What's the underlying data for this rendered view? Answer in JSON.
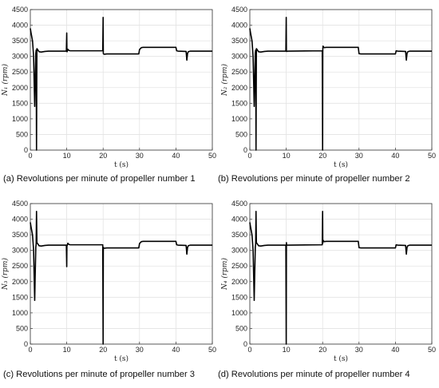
{
  "chart_data": [
    {
      "type": "line",
      "caption": "(a) Revolutions per minute of propeller number 1",
      "xlabel": "t (s)",
      "ylabel": "N₁ (rpm)",
      "xlim": [
        0,
        50
      ],
      "ylim": [
        0,
        4500
      ],
      "xticks": [
        "0",
        "10",
        "20",
        "30",
        "40",
        "50"
      ],
      "yticks": [
        "0",
        "500",
        "1000",
        "1500",
        "2000",
        "2500",
        "3000",
        "3500",
        "4000",
        "4500"
      ],
      "grid": true,
      "series": [
        {
          "x": [
            0,
            0.2,
            0.6,
            0.9,
            1.2,
            1.3,
            1.5,
            1.6,
            1.7,
            1.8,
            2.0,
            2.4,
            3.0,
            4.0,
            5.0,
            9.9,
            10.0,
            10.05,
            10.1,
            10.3,
            10.6,
            11.0,
            19.9,
            20.0,
            20.05,
            20.1,
            20.3,
            21,
            29.8,
            30.0,
            30.5,
            31,
            40,
            40.2,
            40.6,
            42.8,
            43.0,
            43.2,
            43.4,
            43.7,
            44,
            50
          ],
          "y": [
            3900,
            3750,
            3500,
            3000,
            1400,
            2000,
            3100,
            3200,
            0,
            3250,
            3220,
            3150,
            3140,
            3160,
            3170,
            3170,
            3750,
            3170,
            3150,
            3230,
            3190,
            3180,
            3180,
            4250,
            3100,
            3080,
            3070,
            3080,
            3080,
            3220,
            3280,
            3290,
            3290,
            3180,
            3170,
            3160,
            2880,
            3100,
            3150,
            3160,
            3170,
            3170
          ]
        }
      ]
    },
    {
      "type": "line",
      "caption": "(b) Revolutions per minute of propeller number 2",
      "xlabel": "t (s)",
      "ylabel": "N₂ (rpm)",
      "xlim": [
        0,
        50
      ],
      "ylim": [
        0,
        4500
      ],
      "xticks": [
        "0",
        "10",
        "20",
        "30",
        "40",
        "50"
      ],
      "yticks": [
        "0",
        "500",
        "1000",
        "1500",
        "2000",
        "2500",
        "3000",
        "3500",
        "4000",
        "4500"
      ],
      "grid": true,
      "series": [
        {
          "x": [
            0,
            0.2,
            0.6,
            0.9,
            1.2,
            1.3,
            1.5,
            1.6,
            1.7,
            1.8,
            2.0,
            2.4,
            3.0,
            4.0,
            5.0,
            9.9,
            10.0,
            10.05,
            10.1,
            10.5,
            19.9,
            20.0,
            20.05,
            20.1,
            20.4,
            21,
            29.8,
            30.0,
            30.5,
            31,
            40,
            40.2,
            40.6,
            42.8,
            43.0,
            43.2,
            43.4,
            43.7,
            44,
            50
          ],
          "y": [
            3900,
            3750,
            3500,
            3000,
            1400,
            2000,
            3100,
            3200,
            0,
            3250,
            3220,
            3150,
            3140,
            3160,
            3170,
            3170,
            4250,
            3170,
            3160,
            3170,
            3180,
            0,
            3230,
            3330,
            3280,
            3290,
            3290,
            3090,
            3080,
            3080,
            3080,
            3180,
            3170,
            3160,
            2880,
            3100,
            3150,
            3160,
            3170,
            3170
          ]
        }
      ]
    },
    {
      "type": "line",
      "caption": "(c) Revolutions per minute of propeller number 3",
      "xlabel": "t (s)",
      "ylabel": "N₃ (rpm)",
      "xlim": [
        0,
        50
      ],
      "ylim": [
        0,
        4500
      ],
      "xticks": [
        "0",
        "10",
        "20",
        "30",
        "40",
        "50"
      ],
      "yticks": [
        "0",
        "500",
        "1000",
        "1500",
        "2000",
        "2500",
        "3000",
        "3500",
        "4000",
        "4500"
      ],
      "grid": true,
      "series": [
        {
          "x": [
            0,
            0.2,
            0.6,
            0.9,
            1.2,
            1.3,
            1.5,
            1.6,
            1.7,
            1.8,
            2.0,
            2.4,
            3.0,
            4.0,
            5.0,
            9.9,
            10.0,
            10.05,
            10.1,
            10.3,
            10.6,
            11.0,
            19.9,
            20.0,
            20.05,
            20.1,
            20.3,
            21,
            29.8,
            30.0,
            30.5,
            31,
            40,
            40.2,
            40.6,
            42.8,
            43.0,
            43.2,
            43.4,
            43.7,
            44,
            50
          ],
          "y": [
            3900,
            3750,
            3500,
            3000,
            1400,
            2000,
            3100,
            3200,
            4250,
            3250,
            3220,
            3150,
            3140,
            3160,
            3170,
            3170,
            2480,
            3170,
            3150,
            3230,
            3190,
            3180,
            3180,
            0,
            3100,
            3080,
            3070,
            3080,
            3080,
            3220,
            3280,
            3290,
            3290,
            3180,
            3170,
            3160,
            2880,
            3100,
            3150,
            3160,
            3170,
            3170
          ]
        }
      ]
    },
    {
      "type": "line",
      "caption": "(d) Revolutions per minute of propeller number 4",
      "xlabel": "t (s)",
      "ylabel": "N₄ (rpm)",
      "xlim": [
        0,
        50
      ],
      "ylim": [
        0,
        4500
      ],
      "xticks": [
        "0",
        "10",
        "20",
        "30",
        "40",
        "50"
      ],
      "yticks": [
        "0",
        "500",
        "1000",
        "1500",
        "2000",
        "2500",
        "3000",
        "3500",
        "4000",
        "4500"
      ],
      "grid": true,
      "series": [
        {
          "x": [
            0,
            0.2,
            0.6,
            0.9,
            1.2,
            1.3,
            1.5,
            1.6,
            1.7,
            1.8,
            2.0,
            2.4,
            3.0,
            4.0,
            5.0,
            9.9,
            10.0,
            10.05,
            10.1,
            10.5,
            19.9,
            20.0,
            20.05,
            20.1,
            20.4,
            21,
            29.8,
            30.0,
            30.5,
            31,
            40,
            40.2,
            40.6,
            42.8,
            43.0,
            43.2,
            43.4,
            43.7,
            44,
            50
          ],
          "y": [
            3900,
            3750,
            3500,
            3000,
            1400,
            2000,
            3100,
            3200,
            4250,
            3250,
            3220,
            3150,
            3140,
            3160,
            3170,
            3170,
            0,
            3250,
            3170,
            3170,
            3180,
            4250,
            3230,
            3330,
            3280,
            3290,
            3290,
            3090,
            3080,
            3080,
            3080,
            3180,
            3170,
            3160,
            2880,
            3100,
            3150,
            3160,
            3170,
            3170
          ]
        }
      ]
    }
  ]
}
